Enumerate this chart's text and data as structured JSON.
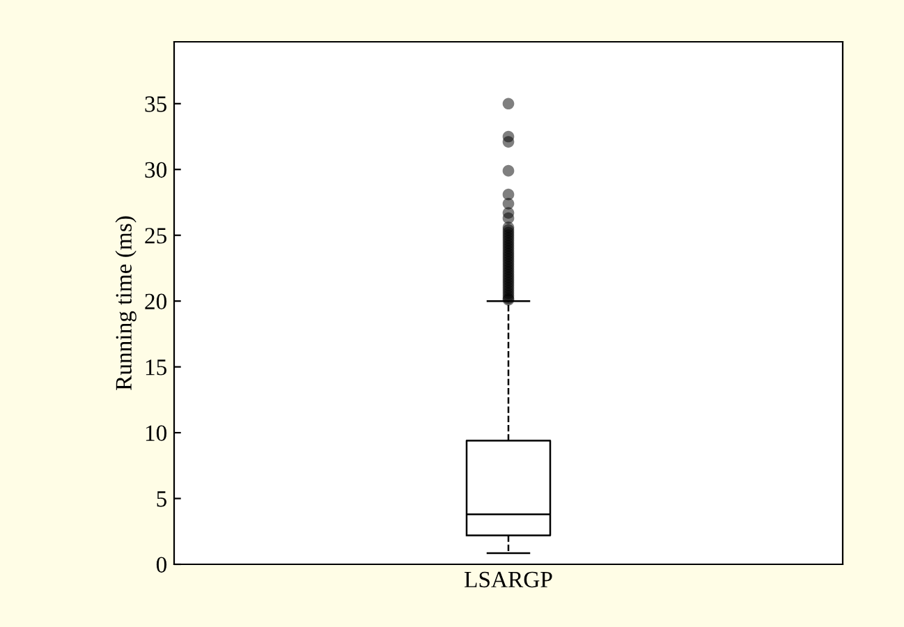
{
  "chart_data": {
    "type": "box",
    "ylabel": "Running time (ms)",
    "categories": [
      "LSARGP"
    ],
    "boxes": [
      {
        "low": 0.85,
        "q1": 2.2,
        "median": 3.8,
        "q3": 9.4,
        "high": 20.0,
        "outliers": [
          35.0,
          32.5,
          32.1,
          29.9,
          28.1,
          27.4,
          26.7,
          26.3,
          25.6,
          25.4,
          25.2,
          25.0,
          24.8,
          24.6,
          24.4,
          24.2,
          24.0,
          23.8,
          23.6,
          23.4,
          23.2,
          23.0,
          22.8,
          22.6,
          22.4,
          22.2,
          22.0,
          21.8,
          21.6,
          21.4,
          21.2,
          21.0,
          20.8,
          20.6,
          20.4,
          20.2,
          20.1
        ]
      }
    ],
    "color": "#000000",
    "ylim": [
      0,
      39.7
    ],
    "yticks": [
      0,
      5,
      10,
      15,
      20,
      25,
      30,
      35
    ],
    "grid": false
  }
}
